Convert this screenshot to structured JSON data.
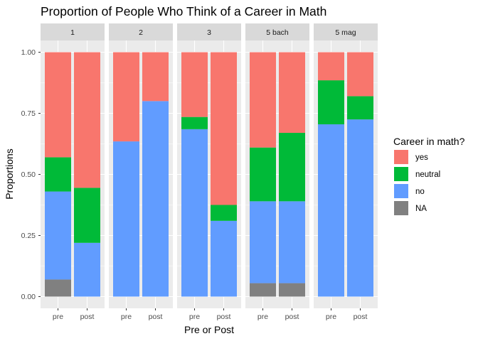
{
  "chart_data": {
    "type": "bar",
    "stacked": true,
    "faceted": true,
    "title": "Proportion of People Who Think of a Career in Math",
    "xlabel": "Pre or Post",
    "ylabel": "Proportions",
    "ylim": [
      0,
      1
    ],
    "y_ticks": [
      "0.00",
      "0.25",
      "0.50",
      "0.75",
      "1.00"
    ],
    "categories": [
      "pre",
      "post"
    ],
    "legend": {
      "title": "Career in math?",
      "position": "right",
      "entries": [
        {
          "label": "yes",
          "color": "#F8766D"
        },
        {
          "label": "neutral",
          "color": "#00BA38"
        },
        {
          "label": "no",
          "color": "#619CFF"
        },
        {
          "label": "NA",
          "color": "#808080"
        }
      ]
    },
    "stack_order_bottom_to_top": [
      "NA",
      "no",
      "neutral",
      "yes"
    ],
    "facets": [
      {
        "label": "1",
        "bars": [
          {
            "x": "pre",
            "NA": 0.07,
            "no": 0.36,
            "neutral": 0.14,
            "yes": 0.43
          },
          {
            "x": "post",
            "NA": 0.0,
            "no": 0.22,
            "neutral": 0.225,
            "yes": 0.555
          }
        ]
      },
      {
        "label": "2",
        "bars": [
          {
            "x": "pre",
            "NA": 0.0,
            "no": 0.635,
            "neutral": 0.0,
            "yes": 0.365
          },
          {
            "x": "post",
            "NA": 0.0,
            "no": 0.8,
            "neutral": 0.0,
            "yes": 0.2
          }
        ]
      },
      {
        "label": "3",
        "bars": [
          {
            "x": "pre",
            "NA": 0.0,
            "no": 0.685,
            "neutral": 0.05,
            "yes": 0.265
          },
          {
            "x": "post",
            "NA": 0.0,
            "no": 0.31,
            "neutral": 0.065,
            "yes": 0.625
          }
        ]
      },
      {
        "label": "5 bach",
        "bars": [
          {
            "x": "pre",
            "NA": 0.055,
            "no": 0.335,
            "neutral": 0.22,
            "yes": 0.39
          },
          {
            "x": "post",
            "NA": 0.055,
            "no": 0.335,
            "neutral": 0.28,
            "yes": 0.33
          }
        ]
      },
      {
        "label": "5 mag",
        "bars": [
          {
            "x": "pre",
            "NA": 0.0,
            "no": 0.705,
            "neutral": 0.18,
            "yes": 0.115
          },
          {
            "x": "post",
            "NA": 0.0,
            "no": 0.725,
            "neutral": 0.095,
            "yes": 0.18
          }
        ]
      }
    ],
    "grid": true,
    "panel_background": "#EBEBEB",
    "strip_background": "#D9D9D9"
  }
}
